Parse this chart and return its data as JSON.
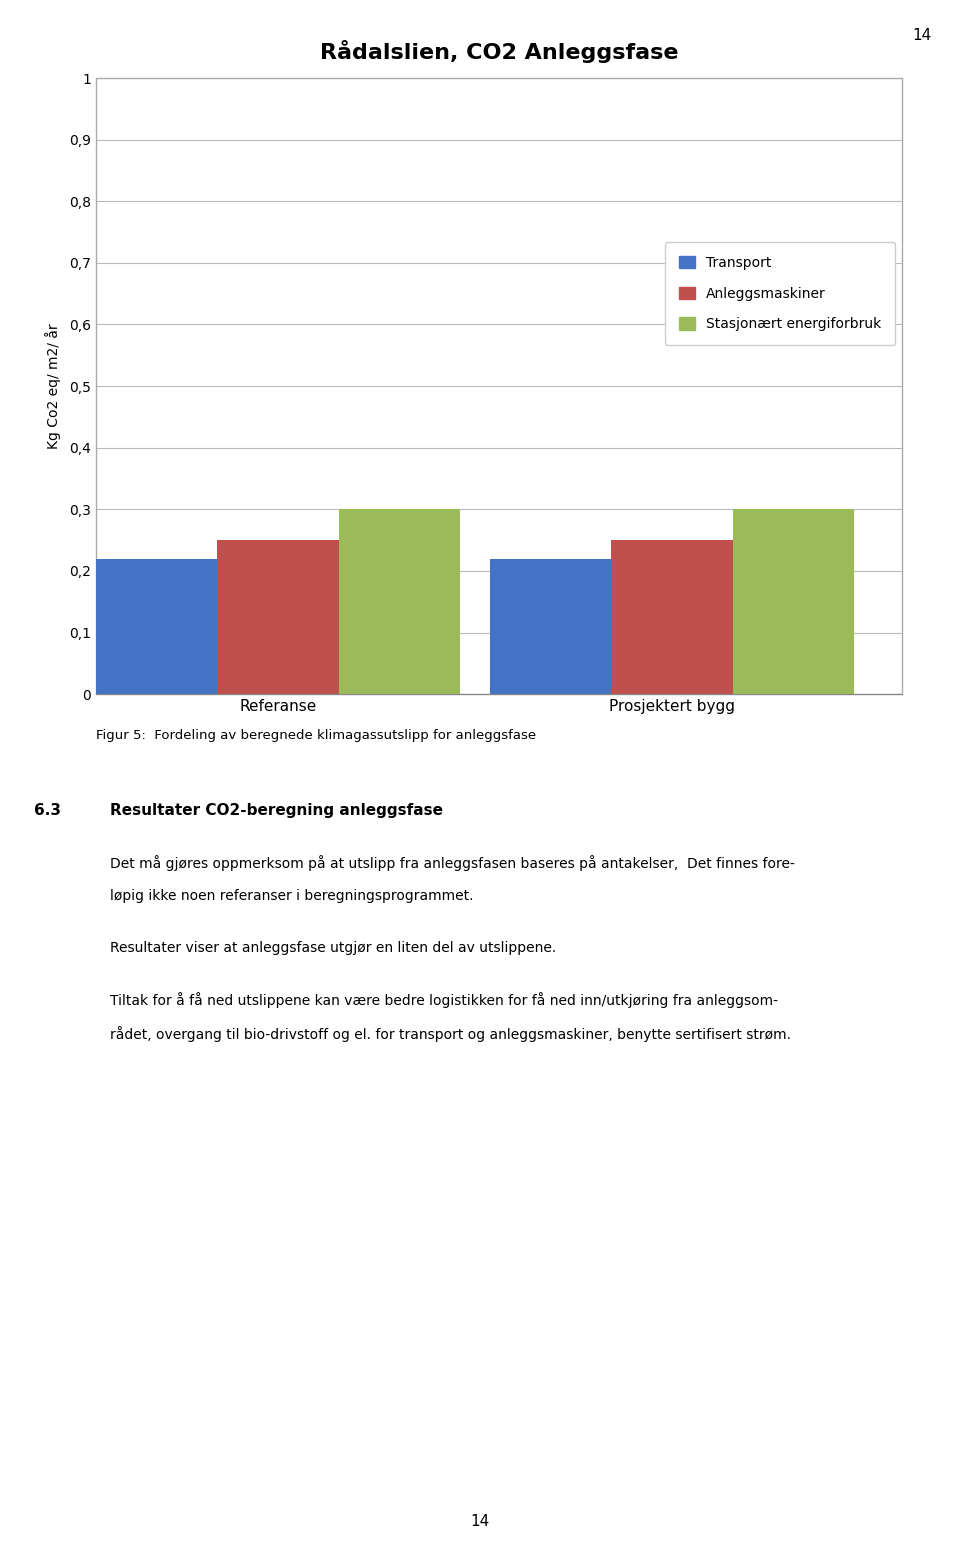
{
  "title": "Rådalslien, CO2 Anleggsfase",
  "categories": [
    "Referanse",
    "Prosjektert bygg"
  ],
  "series": {
    "Transport": [
      0.22,
      0.22
    ],
    "Anleggsmaskiner": [
      0.25,
      0.25
    ],
    "Stasjonært energiforbruk": [
      0.3,
      0.3
    ]
  },
  "colors": {
    "Transport": "#4472C4",
    "Anleggsmaskiner": "#C0504D",
    "Stasjonært energiforbruk": "#9BBB59"
  },
  "ylabel": "Kg Co2 eq/ m2/ år",
  "ylim": [
    0,
    1.0
  ],
  "yticks": [
    0,
    0.1,
    0.2,
    0.3,
    0.4,
    0.5,
    0.6,
    0.7,
    0.8,
    0.9,
    1
  ],
  "ytick_labels": [
    "0",
    "0,1",
    "0,2",
    "0,3",
    "0,4",
    "0,5",
    "0,6",
    "0,7",
    "0,8",
    "0,9",
    "1"
  ],
  "figure_caption": "Figur 5:  Fordeling av beregnede klimagassutslipp for anleggsfase",
  "page_number": "14",
  "section_number": "6.3",
  "section_title": "Resultater CO2-beregning anleggsfase",
  "p1_line1": "Det må gjøres oppmerksom på at utslipp fra anleggsfasen baseres på antakelser,  Det finnes fore-",
  "p1_line2": "løpig ikke noen referanser i beregningsprogrammet.",
  "p2": "Resultater viser at anleggsfase utgjør en liten del av utslippene.",
  "p3_line1": "Tiltak for å få ned utslippene kan være bedre logistikken for få ned inn/utkjøring fra anleggsom-",
  "p3_line2": "rådet, overgang til bio-drivstoff og el. for transport og anleggsmaskiner, benytte sertifisert strøm.",
  "chart_bg": "#FFFFFF",
  "page_bg": "#FFFFFF",
  "bar_width": 0.2,
  "legend_entries": [
    "Transport",
    "Anleggsmaskiner",
    "Stasjonært energiforbruk"
  ]
}
